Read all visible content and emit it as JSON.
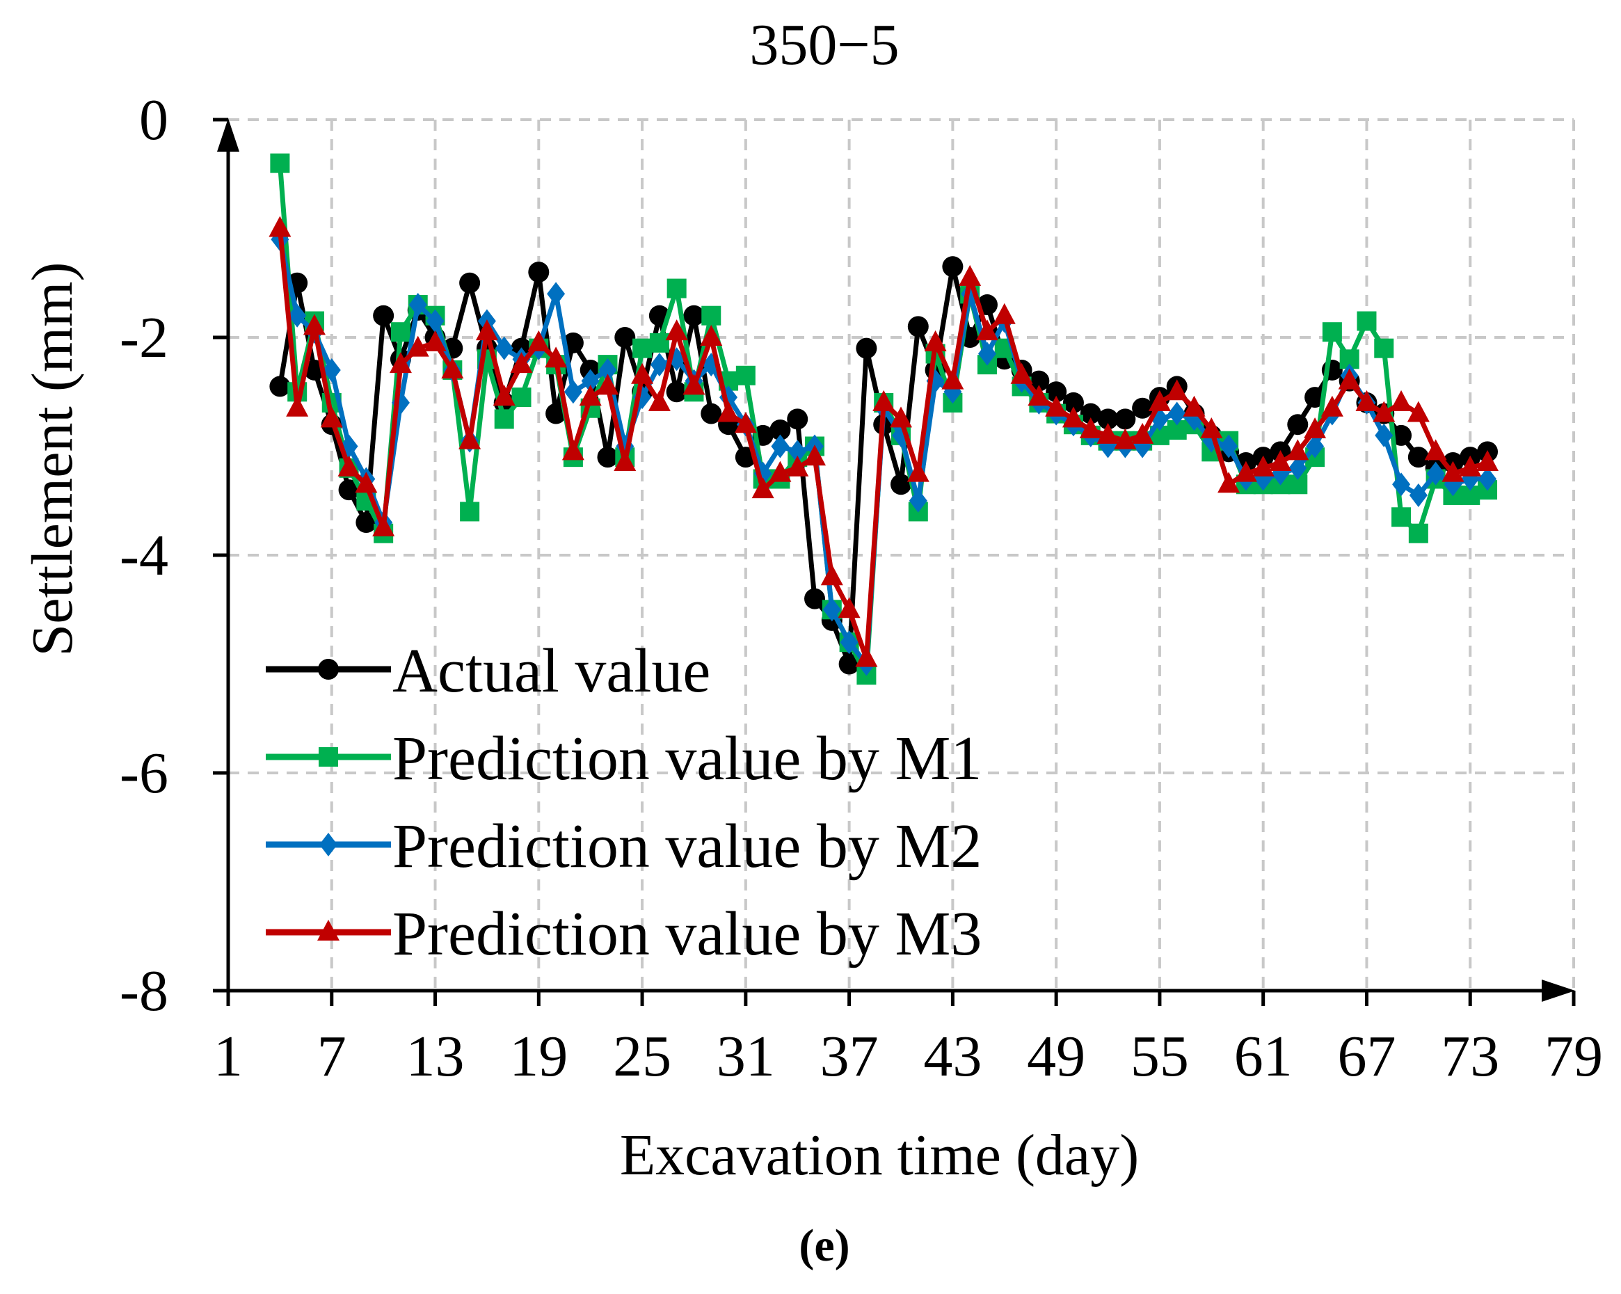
{
  "chart_data": {
    "type": "line",
    "title": "350−5",
    "xlabel": "Excavation time (day)",
    "ylabel": "Settlement (mm)",
    "panel_label": "(e)",
    "xlim": [
      1,
      79
    ],
    "ylim": [
      -8,
      0
    ],
    "x_ticks": [
      1,
      7,
      13,
      19,
      25,
      31,
      37,
      43,
      49,
      55,
      61,
      67,
      73,
      79
    ],
    "y_ticks": [
      0,
      -2,
      -4,
      -6,
      -8
    ],
    "y_tick_labels": [
      "0",
      "-2",
      "-4",
      "-6",
      "-8"
    ],
    "grid": true,
    "legend_position": "bottom-left",
    "series": [
      {
        "name": "Actual value",
        "color": "#000000",
        "marker": "circle",
        "x": [
          4,
          5,
          6,
          7,
          8,
          9,
          10,
          11,
          12,
          13,
          14,
          15,
          16,
          17,
          18,
          19,
          20,
          21,
          22,
          23,
          24,
          25,
          26,
          27,
          28,
          29,
          30,
          31,
          32,
          33,
          34,
          35,
          36,
          37,
          38,
          39,
          40,
          41,
          42,
          43,
          44,
          45,
          46,
          47,
          48,
          49,
          50,
          51,
          52,
          53,
          54,
          55,
          56,
          57,
          58,
          59,
          60,
          61,
          62,
          63,
          64,
          65,
          66,
          67,
          68,
          69,
          70,
          71,
          72,
          73,
          74
        ],
        "y": [
          -2.45,
          -1.5,
          -2.3,
          -2.8,
          -3.4,
          -3.7,
          -1.8,
          -2.2,
          -1.75,
          -2.0,
          -2.1,
          -1.5,
          -2.1,
          -2.6,
          -2.1,
          -1.4,
          -2.7,
          -2.05,
          -2.3,
          -3.1,
          -2.0,
          -2.5,
          -1.8,
          -2.5,
          -1.8,
          -2.7,
          -2.8,
          -3.1,
          -2.9,
          -2.85,
          -2.75,
          -4.4,
          -4.6,
          -5.0,
          -2.1,
          -2.8,
          -3.35,
          -1.9,
          -2.3,
          -1.35,
          -2.0,
          -1.7,
          -2.2,
          -2.3,
          -2.4,
          -2.5,
          -2.6,
          -2.7,
          -2.75,
          -2.75,
          -2.65,
          -2.55,
          -2.45,
          -2.7,
          -2.9,
          -3.05,
          -3.15,
          -3.1,
          -3.05,
          -2.8,
          -2.55,
          -2.3,
          -2.4,
          -2.6,
          -2.7,
          -2.9,
          -3.1,
          -3.2,
          -3.15,
          -3.1,
          -3.05
        ]
      },
      {
        "name": "Prediction value by M1",
        "color": "#00b050",
        "marker": "square",
        "x": [
          4,
          5,
          6,
          7,
          8,
          9,
          10,
          11,
          12,
          13,
          14,
          15,
          16,
          17,
          18,
          19,
          20,
          21,
          22,
          23,
          24,
          25,
          26,
          27,
          28,
          29,
          30,
          31,
          32,
          33,
          34,
          35,
          36,
          37,
          38,
          39,
          40,
          41,
          42,
          43,
          44,
          45,
          46,
          47,
          48,
          49,
          50,
          51,
          52,
          53,
          54,
          55,
          56,
          57,
          58,
          59,
          60,
          61,
          62,
          63,
          64,
          65,
          66,
          67,
          68,
          69,
          70,
          71,
          72,
          73,
          74
        ],
        "y": [
          -0.4,
          -2.5,
          -1.85,
          -2.6,
          -3.2,
          -3.5,
          -3.8,
          -1.95,
          -1.7,
          -1.8,
          -2.3,
          -3.6,
          -2.2,
          -2.75,
          -2.55,
          -2.1,
          -2.25,
          -3.1,
          -2.65,
          -2.25,
          -3.1,
          -2.1,
          -2.05,
          -1.55,
          -2.5,
          -1.8,
          -2.4,
          -2.35,
          -3.3,
          -3.3,
          -3.1,
          -3.0,
          -4.5,
          -4.8,
          -5.1,
          -2.6,
          -2.9,
          -3.6,
          -2.15,
          -2.6,
          -1.6,
          -2.25,
          -2.1,
          -2.45,
          -2.6,
          -2.7,
          -2.8,
          -2.9,
          -2.95,
          -2.95,
          -2.95,
          -2.9,
          -2.85,
          -2.8,
          -3.05,
          -2.95,
          -3.35,
          -3.35,
          -3.35,
          -3.35,
          -3.1,
          -1.95,
          -2.2,
          -1.85,
          -2.1,
          -3.65,
          -3.8,
          -3.3,
          -3.45,
          -3.45,
          -3.4
        ]
      },
      {
        "name": "Prediction value by M2",
        "color": "#0070c0",
        "marker": "diamond",
        "x": [
          4,
          5,
          6,
          7,
          8,
          9,
          10,
          11,
          12,
          13,
          14,
          15,
          16,
          17,
          18,
          19,
          20,
          21,
          22,
          23,
          24,
          25,
          26,
          27,
          28,
          29,
          30,
          31,
          32,
          33,
          34,
          35,
          36,
          37,
          38,
          39,
          40,
          41,
          42,
          43,
          44,
          45,
          46,
          47,
          48,
          49,
          50,
          51,
          52,
          53,
          54,
          55,
          56,
          57,
          58,
          59,
          60,
          61,
          62,
          63,
          64,
          65,
          66,
          67,
          68,
          69,
          70,
          71,
          72,
          73,
          74
        ],
        "y": [
          -1.1,
          -1.8,
          -1.95,
          -2.3,
          -3.0,
          -3.3,
          -3.7,
          -2.6,
          -1.7,
          -1.85,
          -2.3,
          -2.95,
          -1.85,
          -2.1,
          -2.2,
          -2.1,
          -1.6,
          -2.5,
          -2.4,
          -2.3,
          -3.0,
          -2.55,
          -2.25,
          -2.2,
          -2.4,
          -2.25,
          -2.55,
          -2.8,
          -3.25,
          -3.0,
          -3.05,
          -3.0,
          -4.5,
          -4.8,
          -5.0,
          -2.65,
          -2.9,
          -3.5,
          -2.4,
          -2.5,
          -1.6,
          -2.15,
          -1.85,
          -2.4,
          -2.6,
          -2.7,
          -2.8,
          -2.9,
          -3.0,
          -3.0,
          -3.0,
          -2.75,
          -2.7,
          -2.75,
          -2.95,
          -3.0,
          -3.3,
          -3.3,
          -3.25,
          -3.2,
          -3.0,
          -2.7,
          -2.35,
          -2.6,
          -2.9,
          -3.35,
          -3.45,
          -3.25,
          -3.35,
          -3.3,
          -3.3
        ]
      },
      {
        "name": "Prediction value by M3",
        "color": "#c00000",
        "marker": "triangle",
        "x": [
          4,
          5,
          6,
          7,
          8,
          9,
          10,
          11,
          12,
          13,
          14,
          15,
          16,
          17,
          18,
          19,
          20,
          21,
          22,
          23,
          24,
          25,
          26,
          27,
          28,
          29,
          30,
          31,
          32,
          33,
          34,
          35,
          36,
          37,
          38,
          39,
          40,
          41,
          42,
          43,
          44,
          45,
          46,
          47,
          48,
          49,
          50,
          51,
          52,
          53,
          54,
          55,
          56,
          57,
          58,
          59,
          60,
          61,
          62,
          63,
          64,
          65,
          66,
          67,
          68,
          69,
          70,
          71,
          72,
          73,
          74
        ],
        "y": [
          -1.0,
          -2.65,
          -1.9,
          -2.75,
          -3.2,
          -3.35,
          -3.75,
          -2.25,
          -2.1,
          -2.05,
          -2.3,
          -2.95,
          -1.95,
          -2.55,
          -2.25,
          -2.05,
          -2.2,
          -3.05,
          -2.55,
          -2.45,
          -3.15,
          -2.35,
          -2.6,
          -1.95,
          -2.45,
          -2.0,
          -2.7,
          -2.8,
          -3.4,
          -3.25,
          -3.2,
          -3.1,
          -4.2,
          -4.5,
          -4.95,
          -2.6,
          -2.75,
          -3.25,
          -2.05,
          -2.4,
          -1.45,
          -1.95,
          -1.8,
          -2.35,
          -2.55,
          -2.65,
          -2.75,
          -2.85,
          -2.9,
          -2.95,
          -2.9,
          -2.6,
          -2.5,
          -2.65,
          -2.85,
          -3.35,
          -3.25,
          -3.2,
          -3.15,
          -3.05,
          -2.85,
          -2.65,
          -2.4,
          -2.6,
          -2.7,
          -2.6,
          -2.7,
          -3.05,
          -3.25,
          -3.2,
          -3.15
        ]
      }
    ]
  }
}
